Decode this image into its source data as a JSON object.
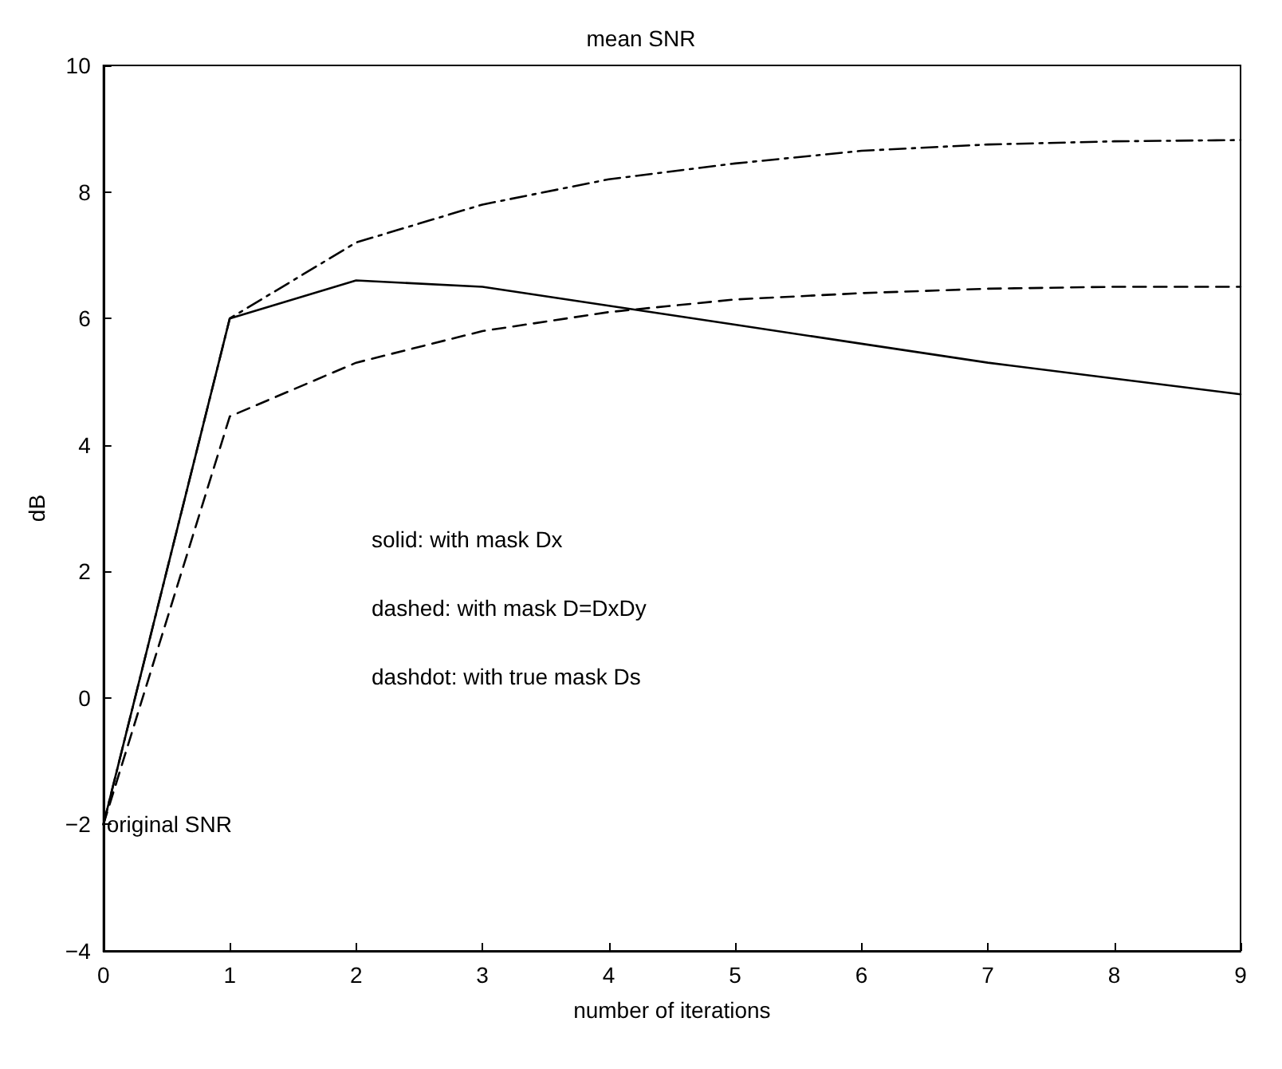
{
  "chart_data": {
    "type": "line",
    "title": "mean SNR",
    "xlabel": "number of iterations",
    "ylabel": "dB",
    "x": [
      0,
      1,
      2,
      3,
      4,
      5,
      6,
      7,
      8,
      9
    ],
    "series": [
      {
        "color": "#000000",
        "line_style": "solid",
        "values": [
          -2,
          6.0,
          6.6,
          6.5,
          6.2,
          5.9,
          5.6,
          5.3,
          5.05,
          4.8
        ]
      },
      {
        "color": "#000000",
        "line_style": "dashed",
        "values": [
          -2,
          4.45,
          5.3,
          5.8,
          6.1,
          6.3,
          6.4,
          6.47,
          6.5,
          6.5
        ]
      },
      {
        "color": "#000000",
        "line_style": "dashdot",
        "values": [
          -2,
          6.0,
          7.2,
          7.8,
          8.2,
          8.45,
          8.65,
          8.75,
          8.8,
          8.82
        ]
      }
    ],
    "xlim": [
      0,
      9
    ],
    "xticks": [
      0,
      1,
      2,
      3,
      4,
      5,
      6,
      7,
      8,
      9
    ],
    "ylim": [
      -4,
      10
    ],
    "yticks": [
      -4,
      -2,
      0,
      2,
      4,
      6,
      8,
      10
    ],
    "grid": false,
    "marker": "none",
    "annotations": [
      {
        "text": "original SNR",
        "x": 0,
        "y": -2
      },
      "solid: with mask Dx",
      "dashed: with mask D=DxDy",
      "dashdot: with true mask Ds"
    ]
  }
}
